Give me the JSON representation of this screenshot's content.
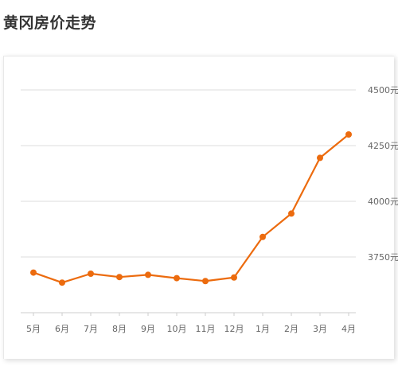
{
  "page": {
    "title": "黄冈房价走势"
  },
  "colors": {
    "line": "#ec6b0e",
    "grid": "#dcdcdc",
    "axis": "#cccccc",
    "label": "#666666"
  },
  "chart_data": {
    "type": "line",
    "title": "黄冈房价走势",
    "xlabel": "",
    "ylabel": "",
    "y_tick_suffix": "元",
    "ylim": [
      3500,
      4500
    ],
    "y_ticks": [
      3750,
      4000,
      4250,
      4500
    ],
    "y_tick_labels": [
      "3750元",
      "4000元",
      "4250元",
      "4500元"
    ],
    "grid": true,
    "legend": "none",
    "categories": [
      "5月",
      "6月",
      "7月",
      "8月",
      "9月",
      "10月",
      "11月",
      "12月",
      "1月",
      "2月",
      "3月",
      "4月"
    ],
    "series": [
      {
        "values": [
          3680,
          3635,
          3675,
          3660,
          3670,
          3655,
          3642,
          3658,
          3840,
          3945,
          4195,
          4300
        ]
      }
    ]
  }
}
